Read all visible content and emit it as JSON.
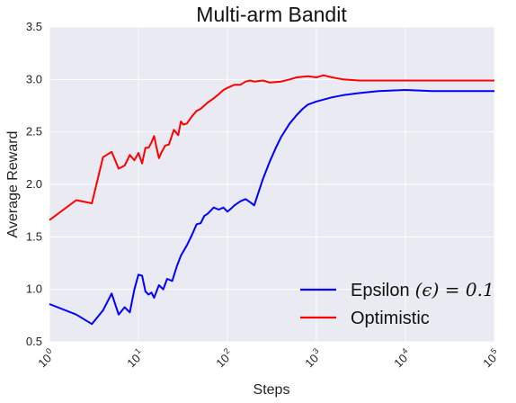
{
  "chart_data": {
    "type": "line",
    "title": "Multi-arm Bandit",
    "xlabel": "Steps",
    "ylabel": "Average Reward",
    "xscale": "log",
    "xlim": [
      1,
      100000
    ],
    "ylim": [
      0.5,
      3.5
    ],
    "grid": true,
    "legend_position": "lower-right",
    "x_ticks": [
      {
        "value": 1,
        "base": "10",
        "exp": "0"
      },
      {
        "value": 10,
        "base": "10",
        "exp": "1"
      },
      {
        "value": 100,
        "base": "10",
        "exp": "2"
      },
      {
        "value": 1000,
        "base": "10",
        "exp": "3"
      },
      {
        "value": 10000,
        "base": "10",
        "exp": "4"
      },
      {
        "value": 100000,
        "base": "10",
        "exp": "5"
      }
    ],
    "y_ticks": [
      "0.5",
      "1.0",
      "1.5",
      "2.0",
      "2.5",
      "3.0",
      "3.5"
    ],
    "series": [
      {
        "name": "Epsilon",
        "name_math": "(ϵ) = 0.1",
        "color": "#0000ff",
        "x": [
          1,
          2,
          3,
          4,
          5,
          6,
          7,
          8,
          9,
          10,
          11,
          12,
          13,
          14,
          15,
          17,
          19,
          21,
          24,
          27,
          30,
          35,
          40,
          45,
          50,
          55,
          60,
          70,
          80,
          90,
          100,
          110,
          120,
          140,
          160,
          180,
          200,
          250,
          300,
          350,
          400,
          500,
          600,
          700,
          800,
          1000,
          1500,
          2000,
          3000,
          5000,
          10000,
          20000,
          50000,
          100000
        ],
        "y": [
          0.86,
          0.76,
          0.67,
          0.8,
          0.96,
          0.76,
          0.83,
          0.78,
          1.0,
          1.14,
          1.13,
          0.98,
          0.95,
          0.97,
          0.92,
          1.04,
          1.0,
          1.1,
          1.08,
          1.22,
          1.32,
          1.42,
          1.52,
          1.62,
          1.63,
          1.7,
          1.72,
          1.78,
          1.76,
          1.78,
          1.74,
          1.77,
          1.8,
          1.84,
          1.86,
          1.83,
          1.8,
          2.05,
          2.22,
          2.35,
          2.45,
          2.58,
          2.66,
          2.72,
          2.76,
          2.79,
          2.83,
          2.85,
          2.87,
          2.89,
          2.9,
          2.89,
          2.89,
          2.89
        ]
      },
      {
        "name": "Optimistic",
        "color": "#ff0000",
        "x": [
          1,
          2,
          3,
          4,
          5,
          6,
          7,
          8,
          9,
          10,
          11,
          12,
          13,
          14,
          15,
          16,
          17,
          18,
          20,
          22,
          25,
          28,
          30,
          32,
          35,
          40,
          45,
          50,
          60,
          70,
          80,
          90,
          100,
          120,
          140,
          160,
          180,
          200,
          250,
          300,
          400,
          500,
          600,
          800,
          1000,
          1200,
          1500,
          2000,
          3000,
          5000,
          10000,
          20000,
          50000,
          100000
        ],
        "y": [
          1.66,
          1.85,
          1.82,
          2.26,
          2.31,
          2.15,
          2.18,
          2.28,
          2.23,
          2.3,
          2.2,
          2.35,
          2.35,
          2.4,
          2.46,
          2.35,
          2.25,
          2.3,
          2.37,
          2.38,
          2.52,
          2.47,
          2.6,
          2.57,
          2.58,
          2.65,
          2.7,
          2.72,
          2.78,
          2.82,
          2.86,
          2.9,
          2.92,
          2.95,
          2.95,
          2.98,
          2.99,
          2.98,
          2.99,
          2.97,
          2.98,
          3.0,
          3.02,
          3.03,
          3.02,
          3.04,
          3.02,
          3.0,
          2.99,
          2.99,
          2.99,
          2.99,
          2.99,
          2.99
        ]
      }
    ]
  }
}
